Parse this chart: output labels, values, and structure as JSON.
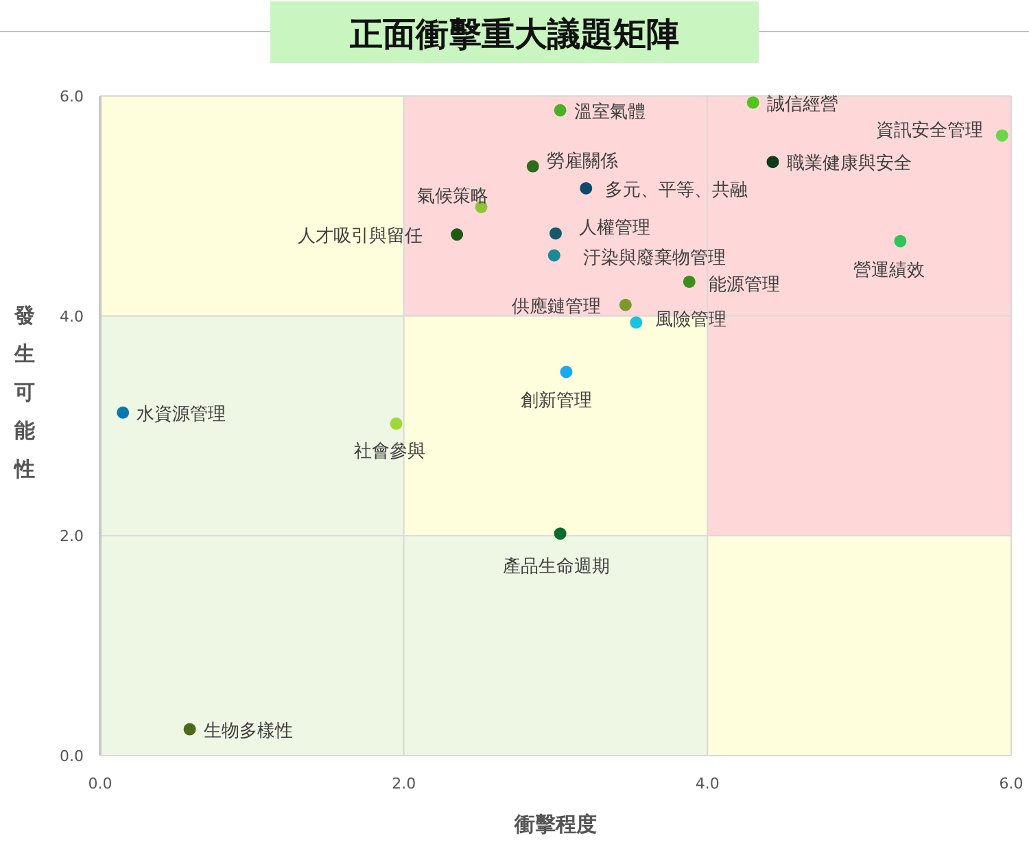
{
  "chart_data": {
    "type": "scatter",
    "title": "正面衝擊重大議題矩陣",
    "xlabel": "衝擊程度",
    "ylabel": "發生可能性",
    "xlim": [
      0,
      6
    ],
    "ylim": [
      0,
      6
    ],
    "xticks": [
      {
        "value": 0,
        "label": "0.0"
      },
      {
        "value": 2,
        "label": "2.0"
      },
      {
        "value": 4,
        "label": "4.0"
      },
      {
        "value": 6,
        "label": "6.0"
      }
    ],
    "yticks": [
      {
        "value": 0,
        "label": "0.0"
      },
      {
        "value": 2,
        "label": "2.0"
      },
      {
        "value": 4,
        "label": "4.0"
      },
      {
        "value": 6,
        "label": "6.0"
      }
    ],
    "grid": true,
    "marker": "circle",
    "series": [
      {
        "name": "溫室氣體",
        "color": "#4caf2a",
        "x": [
          3.03
        ],
        "values": [
          5.87
        ]
      },
      {
        "name": "誠信經營",
        "color": "#52c41a",
        "x": [
          4.3
        ],
        "values": [
          5.94
        ]
      },
      {
        "name": "資訊安全管理",
        "color": "#6cd64a",
        "x": [
          5.94
        ],
        "values": [
          5.64
        ]
      },
      {
        "name": "勞雇關係",
        "color": "#2e6b1a",
        "x": [
          2.85
        ],
        "values": [
          5.36
        ]
      },
      {
        "name": "職業健康與安全",
        "color": "#0f3d1a",
        "x": [
          4.43
        ],
        "values": [
          5.4
        ]
      },
      {
        "name": "多元、平等、共融",
        "color": "#0d4a6b",
        "x": [
          3.2
        ],
        "values": [
          5.16
        ]
      },
      {
        "name": "氣候策略",
        "color": "#8cc43a",
        "x": [
          2.51
        ],
        "values": [
          4.99
        ]
      },
      {
        "name": "人權管理",
        "color": "#135a6b",
        "x": [
          3.0
        ],
        "values": [
          4.75
        ]
      },
      {
        "name": "人才吸引與留任",
        "color": "#1f5a0f",
        "x": [
          2.35
        ],
        "values": [
          4.74
        ]
      },
      {
        "name": "汙染與廢棄物管理",
        "color": "#1a8a9a",
        "x": [
          2.99
        ],
        "values": [
          4.55
        ]
      },
      {
        "name": "營運績效",
        "color": "#2ec45a",
        "x": [
          5.27
        ],
        "values": [
          4.68
        ]
      },
      {
        "name": "能源管理",
        "color": "#3a8f1a",
        "x": [
          3.88
        ],
        "values": [
          4.31
        ]
      },
      {
        "name": "供應鏈管理",
        "color": "#7a9a2a",
        "x": [
          3.46
        ],
        "values": [
          4.1
        ]
      },
      {
        "name": "風險管理",
        "color": "#1ac4e0",
        "x": [
          3.53
        ],
        "values": [
          3.94
        ]
      },
      {
        "name": "創新管理",
        "color": "#1aa8f0",
        "x": [
          3.07
        ],
        "values": [
          3.49
        ]
      },
      {
        "name": "水資源管理",
        "color": "#0a78b0",
        "x": [
          0.15
        ],
        "values": [
          3.12
        ]
      },
      {
        "name": "社會參與",
        "color": "#a0d83a",
        "x": [
          1.95
        ],
        "values": [
          3.02
        ]
      },
      {
        "name": "產品生命週期",
        "color": "#0a6b2e",
        "x": [
          3.03
        ],
        "values": [
          2.02
        ]
      },
      {
        "name": "生物多樣性",
        "color": "#4a6b1a",
        "x": [
          0.59
        ],
        "values": [
          0.24
        ]
      }
    ]
  }
}
